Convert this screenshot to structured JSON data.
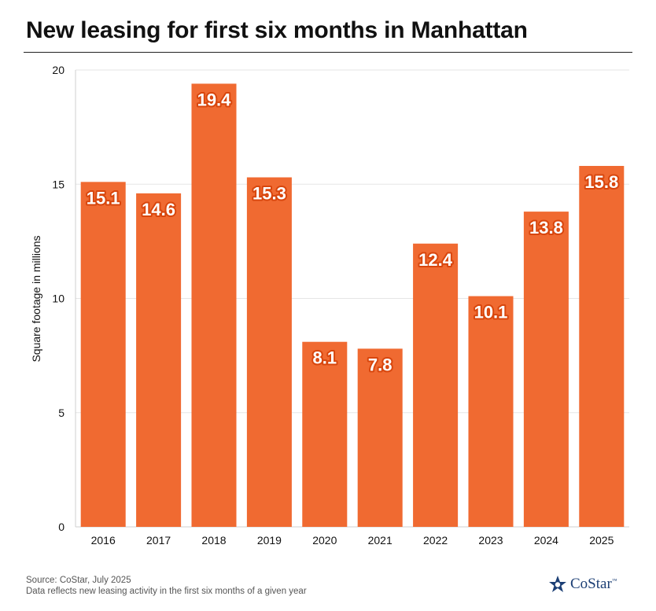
{
  "header": {
    "title": "New leasing for first six months in Manhattan"
  },
  "footer": {
    "source": "Source: CoStar, July 2025",
    "note": "Data reflects new leasing activity in the first six months of a given year",
    "brand": "CoStar",
    "brand_mark": "™"
  },
  "colors": {
    "bar": "#f06a31",
    "label_outline": "#d8460d",
    "grid": "#e6e6e6"
  },
  "chart_data": {
    "type": "bar",
    "title": "New leasing for first six months in Manhattan",
    "xlabel": "",
    "ylabel": "Square footage in millions",
    "categories": [
      "2016",
      "2017",
      "2018",
      "2019",
      "2020",
      "2021",
      "2022",
      "2023",
      "2024",
      "2025"
    ],
    "values": [
      15.1,
      14.6,
      19.4,
      15.3,
      8.1,
      7.8,
      12.4,
      10.1,
      13.8,
      15.8
    ],
    "ylim": [
      0,
      20
    ],
    "yticks": [
      0,
      5,
      10,
      15,
      20
    ],
    "grid": true,
    "legend": "none"
  }
}
